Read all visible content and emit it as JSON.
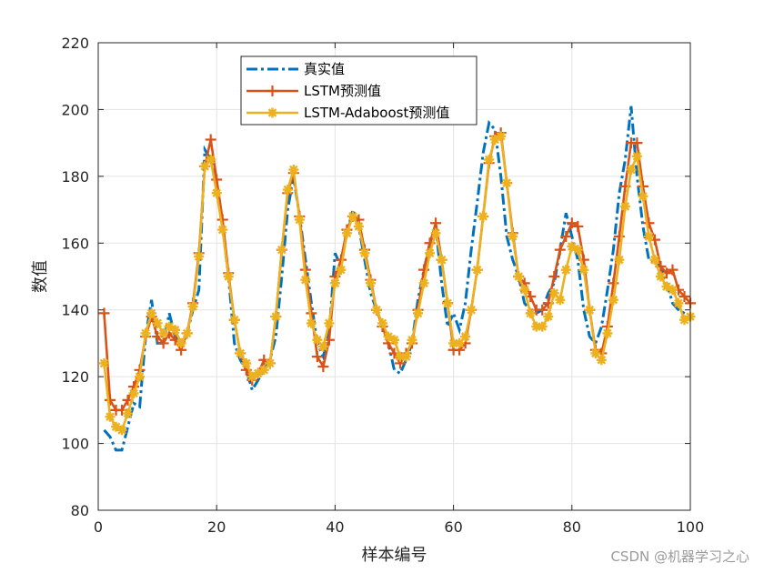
{
  "chart_data": {
    "type": "line",
    "xlabel": "样本编号",
    "ylabel": "数值",
    "xlim": [
      0,
      100
    ],
    "ylim": [
      80,
      220
    ],
    "xticks": [
      0,
      20,
      40,
      60,
      80,
      100
    ],
    "yticks": [
      80,
      100,
      120,
      140,
      160,
      180,
      200,
      220
    ],
    "grid": true,
    "legend_position": "top-center",
    "series": [
      {
        "name": "真实值",
        "color": "#0072BD",
        "style": "dash-dot",
        "x": [
          1,
          2,
          3,
          4,
          5,
          6,
          7,
          8,
          9,
          10,
          11,
          12,
          13,
          14,
          15,
          16,
          17,
          18,
          19,
          20,
          21,
          22,
          23,
          24,
          25,
          26,
          27,
          28,
          29,
          30,
          31,
          32,
          33,
          34,
          35,
          36,
          37,
          38,
          39,
          40,
          41,
          42,
          43,
          44,
          45,
          46,
          47,
          48,
          49,
          50,
          51,
          52,
          53,
          54,
          55,
          56,
          57,
          58,
          59,
          60,
          61,
          62,
          63,
          64,
          65,
          66,
          67,
          68,
          69,
          70,
          71,
          72,
          73,
          74,
          75,
          76,
          77,
          78,
          79,
          80,
          81,
          82,
          83,
          84,
          85,
          86,
          87,
          88,
          89,
          90,
          91,
          92,
          93,
          94,
          95,
          96,
          97,
          98,
          99,
          100
        ],
        "y": [
          104,
          102,
          98,
          98,
          105,
          112,
          111,
          132,
          143,
          130,
          130,
          139,
          132,
          130,
          133,
          140,
          146,
          188,
          185,
          178,
          165,
          150,
          130,
          125,
          122,
          116,
          119,
          122,
          125,
          132,
          150,
          170,
          180,
          168,
          155,
          142,
          130,
          126,
          133,
          157,
          153,
          163,
          170,
          165,
          155,
          145,
          140,
          135,
          130,
          122,
          121,
          125,
          130,
          143,
          152,
          160,
          165,
          148,
          135,
          139,
          134,
          142,
          158,
          172,
          187,
          196,
          194,
          180,
          162,
          155,
          150,
          142,
          140,
          139,
          140,
          145,
          148,
          158,
          169,
          162,
          155,
          140,
          132,
          130,
          135,
          146,
          158,
          175,
          185,
          201,
          180,
          165,
          155,
          154,
          153,
          148,
          142,
          140,
          139,
          138
        ]
      },
      {
        "name": "LSTM预测值",
        "color": "#D95319",
        "style": "solid-plus",
        "x": [
          1,
          2,
          3,
          4,
          5,
          6,
          7,
          8,
          9,
          10,
          11,
          12,
          13,
          14,
          15,
          16,
          17,
          18,
          19,
          20,
          21,
          22,
          23,
          24,
          25,
          26,
          27,
          28,
          29,
          30,
          31,
          32,
          33,
          34,
          35,
          36,
          37,
          38,
          39,
          40,
          41,
          42,
          43,
          44,
          45,
          46,
          47,
          48,
          49,
          50,
          51,
          52,
          53,
          54,
          55,
          56,
          57,
          58,
          59,
          60,
          61,
          62,
          63,
          64,
          65,
          66,
          67,
          68,
          69,
          70,
          71,
          72,
          73,
          74,
          75,
          76,
          77,
          78,
          79,
          80,
          81,
          82,
          83,
          84,
          85,
          86,
          87,
          88,
          89,
          90,
          91,
          92,
          93,
          94,
          95,
          96,
          97,
          98,
          99,
          100
        ],
        "y": [
          139,
          113,
          110,
          110,
          113,
          117,
          122,
          132,
          138,
          132,
          130,
          133,
          131,
          128,
          133,
          142,
          157,
          183,
          191,
          179,
          167,
          151,
          137,
          127,
          122,
          119,
          121,
          125,
          124,
          138,
          158,
          175,
          181,
          168,
          152,
          139,
          126,
          123,
          131,
          150,
          155,
          164,
          168,
          167,
          158,
          149,
          140,
          135,
          130,
          127,
          124,
          127,
          130,
          140,
          152,
          160,
          166,
          155,
          142,
          128,
          128,
          130,
          140,
          152,
          168,
          184,
          192,
          193,
          178,
          163,
          150,
          148,
          144,
          140,
          140,
          142,
          150,
          158,
          162,
          166,
          165,
          155,
          140,
          128,
          127,
          135,
          148,
          162,
          177,
          190,
          190,
          177,
          166,
          161,
          153,
          151,
          152,
          146,
          144,
          142
        ]
      },
      {
        "name": "LSTM-Adaboost预测值",
        "color": "#EDB120",
        "style": "solid-asterisk",
        "x": [
          1,
          2,
          3,
          4,
          5,
          6,
          7,
          8,
          9,
          10,
          11,
          12,
          13,
          14,
          15,
          16,
          17,
          18,
          19,
          20,
          21,
          22,
          23,
          24,
          25,
          26,
          27,
          28,
          29,
          30,
          31,
          32,
          33,
          34,
          35,
          36,
          37,
          38,
          39,
          40,
          41,
          42,
          43,
          44,
          45,
          46,
          47,
          48,
          49,
          50,
          51,
          52,
          53,
          54,
          55,
          56,
          57,
          58,
          59,
          60,
          61,
          62,
          63,
          64,
          65,
          66,
          67,
          68,
          69,
          70,
          71,
          72,
          73,
          74,
          75,
          76,
          77,
          78,
          79,
          80,
          81,
          82,
          83,
          84,
          85,
          86,
          87,
          88,
          89,
          90,
          91,
          92,
          93,
          94,
          95,
          96,
          97,
          98,
          99,
          100
        ],
        "y": [
          124,
          108,
          105,
          104,
          109,
          115,
          120,
          133,
          139,
          136,
          133,
          135,
          134,
          130,
          133,
          141,
          156,
          183,
          185,
          175,
          164,
          150,
          137,
          127,
          124,
          120,
          121,
          122,
          124,
          138,
          158,
          176,
          182,
          167,
          149,
          136,
          131,
          129,
          136,
          148,
          152,
          163,
          168,
          165,
          157,
          148,
          140,
          136,
          132,
          131,
          126,
          126,
          131,
          139,
          148,
          157,
          163,
          155,
          142,
          130,
          130,
          132,
          140,
          152,
          168,
          185,
          191,
          192,
          178,
          162,
          150,
          146,
          139,
          135,
          135,
          138,
          145,
          143,
          152,
          159,
          158,
          152,
          140,
          127,
          125,
          133,
          143,
          155,
          171,
          182,
          186,
          174,
          162,
          155,
          150,
          147,
          146,
          142,
          137,
          138
        ]
      }
    ]
  },
  "watermark": "CSDN @机器学习之心"
}
